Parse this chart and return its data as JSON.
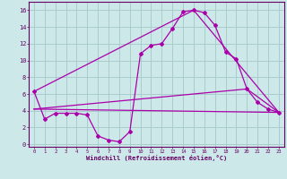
{
  "xlabel": "Windchill (Refroidissement éolien,°C)",
  "background_color": "#cde8e8",
  "grid_color": "#aacccc",
  "line_color": "#aa00aa",
  "xlim": [
    -0.5,
    23.5
  ],
  "ylim": [
    -0.3,
    17.0
  ],
  "xticks": [
    0,
    1,
    2,
    3,
    4,
    5,
    6,
    7,
    8,
    9,
    10,
    11,
    12,
    13,
    14,
    15,
    16,
    17,
    18,
    19,
    20,
    21,
    22,
    23
  ],
  "yticks": [
    0,
    2,
    4,
    6,
    8,
    10,
    12,
    14,
    16
  ],
  "series1_x": [
    0,
    1,
    2,
    3,
    4,
    5,
    6,
    7,
    8,
    9,
    10,
    11,
    12,
    13,
    14,
    15,
    16,
    17,
    18,
    19,
    20,
    21,
    22,
    23
  ],
  "series1_y": [
    6.3,
    3.0,
    3.7,
    3.7,
    3.7,
    3.5,
    1.0,
    0.5,
    0.3,
    1.5,
    10.8,
    11.8,
    12.0,
    13.8,
    15.8,
    16.0,
    15.7,
    14.2,
    11.0,
    10.2,
    6.6,
    5.0,
    4.2,
    3.8
  ],
  "series2_x": [
    0,
    15,
    23
  ],
  "series2_y": [
    6.3,
    16.0,
    3.8
  ],
  "series3_x": [
    0,
    20,
    23
  ],
  "series3_y": [
    4.2,
    6.6,
    3.8
  ],
  "series4_x": [
    0,
    23
  ],
  "series4_y": [
    4.2,
    3.8
  ]
}
